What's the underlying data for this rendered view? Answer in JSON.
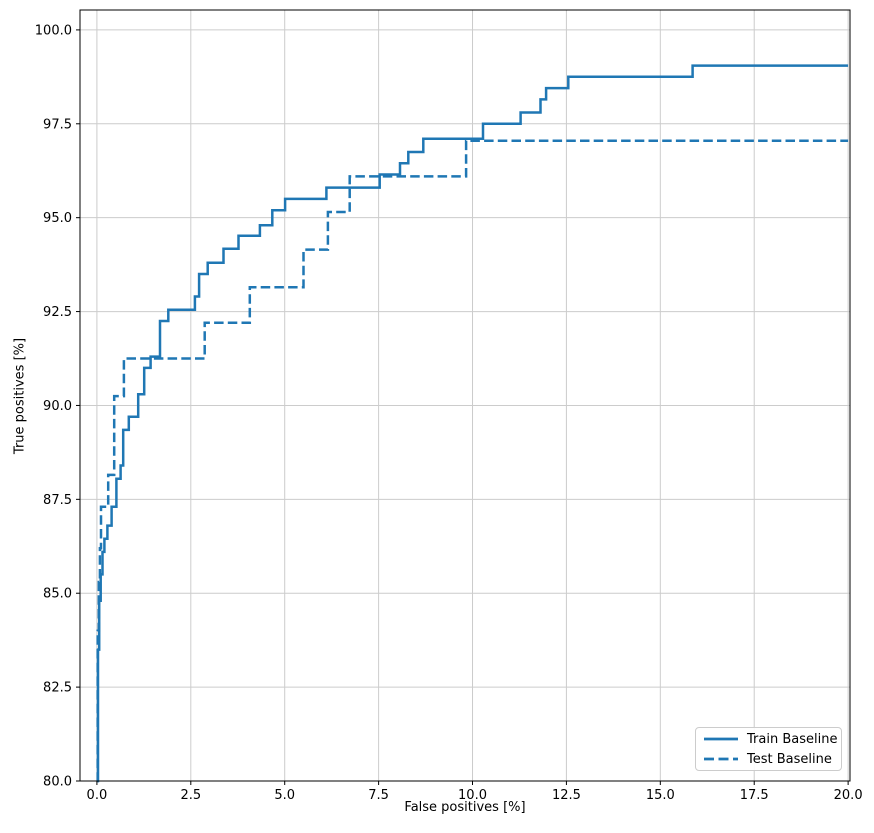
{
  "chart_data": {
    "type": "line",
    "subtype": "roc-step-curve",
    "step_mode": "post",
    "title": "",
    "xlabel": "False positives [%]",
    "ylabel": "True positives [%]",
    "xlim": [
      -0.45,
      20.05
    ],
    "ylim": [
      80.0,
      100.53
    ],
    "grid": true,
    "legend_position": "lower right",
    "colors": {
      "line": "#1f77b4",
      "grid": "#cccccc",
      "spine": "#000000",
      "text": "#000000",
      "legend_border": "#cccccc"
    },
    "xticks": {
      "values": [
        0,
        2.5,
        5,
        7.5,
        10,
        12.5,
        15,
        17.5,
        20
      ],
      "labels": [
        "0.0",
        "2.5",
        "5.0",
        "7.5",
        "10.0",
        "12.5",
        "15.0",
        "17.5",
        "20.0"
      ]
    },
    "yticks": {
      "values": [
        80,
        82.5,
        85,
        87.5,
        90,
        92.5,
        95,
        97.5,
        100
      ],
      "labels": [
        "80.0",
        "82.5",
        "85.0",
        "87.5",
        "90.0",
        "92.5",
        "95.0",
        "97.5",
        "100.0"
      ]
    },
    "series": [
      {
        "name": "Train Baseline",
        "line_style": "solid",
        "color": "#1f77b4",
        "points": [
          [
            0.0,
            80.0
          ],
          [
            0.03,
            83.5
          ],
          [
            0.06,
            84.8
          ],
          [
            0.1,
            85.5
          ],
          [
            0.15,
            86.1
          ],
          [
            0.2,
            86.45
          ],
          [
            0.28,
            86.8
          ],
          [
            0.39,
            87.3
          ],
          [
            0.52,
            88.05
          ],
          [
            0.63,
            88.4
          ],
          [
            0.7,
            89.35
          ],
          [
            0.85,
            89.7
          ],
          [
            1.1,
            90.3
          ],
          [
            1.26,
            91.0
          ],
          [
            1.43,
            91.3
          ],
          [
            1.68,
            92.25
          ],
          [
            1.9,
            92.55
          ],
          [
            2.61,
            92.9
          ],
          [
            2.72,
            93.5
          ],
          [
            2.95,
            93.8
          ],
          [
            3.37,
            94.17
          ],
          [
            3.77,
            94.52
          ],
          [
            4.34,
            94.8
          ],
          [
            4.67,
            95.2
          ],
          [
            5.01,
            95.5
          ],
          [
            6.11,
            95.8
          ],
          [
            7.53,
            96.15
          ],
          [
            8.07,
            96.45
          ],
          [
            8.29,
            96.75
          ],
          [
            8.69,
            97.1
          ],
          [
            10.28,
            97.5
          ],
          [
            11.28,
            97.8
          ],
          [
            11.81,
            98.15
          ],
          [
            11.96,
            98.45
          ],
          [
            12.55,
            98.75
          ],
          [
            15.86,
            99.05
          ],
          [
            20.0,
            99.05
          ]
        ]
      },
      {
        "name": "Test Baseline",
        "line_style": "dashed",
        "color": "#1f77b4",
        "points": [
          [
            0.0,
            80.0
          ],
          [
            0.02,
            84.0
          ],
          [
            0.05,
            85.3
          ],
          [
            0.08,
            86.2
          ],
          [
            0.11,
            87.3
          ],
          [
            0.3,
            88.15
          ],
          [
            0.46,
            90.25
          ],
          [
            0.72,
            91.25
          ],
          [
            2.87,
            92.2
          ],
          [
            4.07,
            93.15
          ],
          [
            5.5,
            94.15
          ],
          [
            6.15,
            95.15
          ],
          [
            6.73,
            96.1
          ],
          [
            9.83,
            97.05
          ],
          [
            20.0,
            97.05
          ]
        ]
      }
    ]
  }
}
